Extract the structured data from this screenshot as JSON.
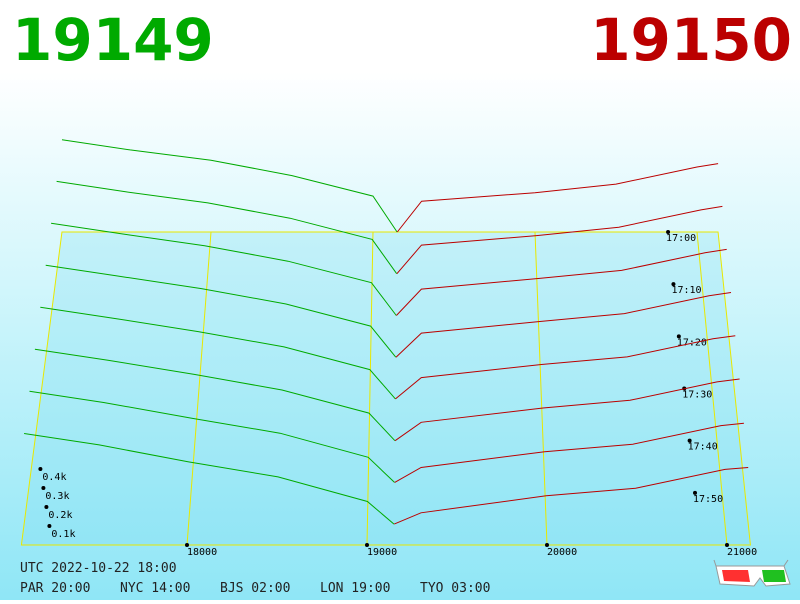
{
  "chart_data": {
    "type": "depth3d",
    "bid_price": 19149,
    "ask_price": 19150,
    "bid_color": "#00aa00",
    "ask_color": "#bb0000",
    "xlim": [
      17080,
      21130
    ],
    "xticks": [
      18000,
      19000,
      20000,
      21000
    ],
    "zticks": [
      {
        "value": 100,
        "label": "0.1k"
      },
      {
        "value": 200,
        "label": "0.2k"
      },
      {
        "value": 300,
        "label": "0.3k"
      },
      {
        "value": 400,
        "label": "0.4k"
      }
    ],
    "tlim": [
      0,
      60
    ],
    "tticks": [
      {
        "value": 0,
        "label": "17:00"
      },
      {
        "value": 10,
        "label": "17:10"
      },
      {
        "value": 20,
        "label": "17:20"
      },
      {
        "value": 30,
        "label": "17:30"
      },
      {
        "value": 40,
        "label": "17:40"
      },
      {
        "value": 50,
        "label": "17:50"
      }
    ],
    "bid_prices": [
      17080,
      17500,
      18000,
      18500,
      19000,
      19149
    ],
    "ask_prices": [
      19150,
      19300,
      20000,
      20500,
      21000,
      21130
    ],
    "snapshots": [
      {
        "t": 0,
        "bids": [
          540,
          480,
          420,
          330,
          210,
          0
        ],
        "asks": [
          0,
          180,
          230,
          280,
          380,
          400
        ]
      },
      {
        "t": 8,
        "bids": [
          532,
          472,
          408,
          320,
          198,
          0
        ],
        "asks": [
          0,
          165,
          220,
          268,
          368,
          388
        ]
      },
      {
        "t": 16,
        "bids": [
          524,
          464,
          396,
          308,
          186,
          0
        ],
        "asks": [
          0,
          150,
          210,
          256,
          356,
          375
        ]
      },
      {
        "t": 24,
        "bids": [
          515,
          455,
          384,
          298,
          174,
          0
        ],
        "asks": [
          0,
          135,
          200,
          244,
          344,
          362
        ]
      },
      {
        "t": 32,
        "bids": [
          506,
          446,
          372,
          287,
          162,
          0
        ],
        "asks": [
          0,
          118,
          190,
          232,
          332,
          349
        ]
      },
      {
        "t": 40,
        "bids": [
          498,
          438,
          360,
          276,
          150,
          0
        ],
        "asks": [
          0,
          100,
          178,
          220,
          320,
          336
        ]
      },
      {
        "t": 48,
        "bids": [
          489,
          429,
          345,
          264,
          135,
          0
        ],
        "asks": [
          0,
          80,
          165,
          205,
          305,
          318
        ]
      },
      {
        "t": 56,
        "bids": [
          480,
          420,
          330,
          250,
          120,
          0
        ],
        "asks": [
          0,
          60,
          150,
          190,
          290,
          300
        ]
      }
    ]
  },
  "footer": {
    "utc": "UTC 2022-10-22 18:00",
    "clocks": [
      "PAR 20:00",
      "NYC 14:00",
      "BJS 02:00",
      "LON 19:00",
      "TYO 03:00"
    ]
  }
}
